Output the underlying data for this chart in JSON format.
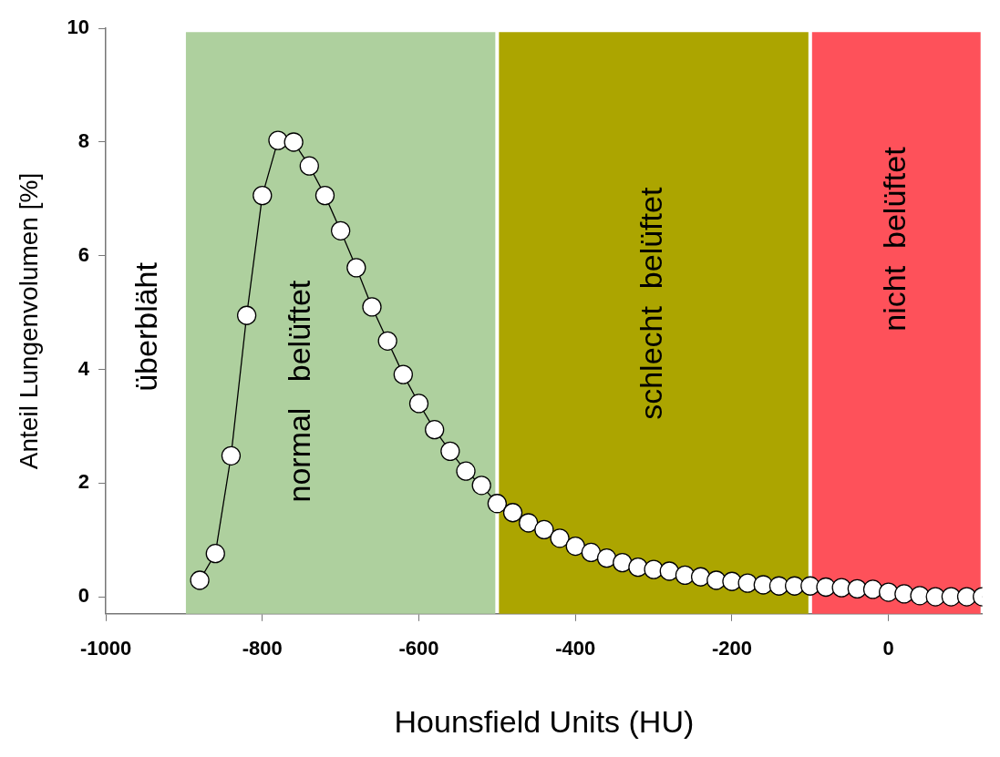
{
  "chart_data": {
    "type": "line",
    "xlabel": "Hounsfield Units (HU)",
    "ylabel": "Anteil Lungenvolumen [%]",
    "x": [
      -880,
      -860,
      -840,
      -820,
      -800,
      -780,
      -760,
      -740,
      -720,
      -700,
      -680,
      -660,
      -640,
      -620,
      -600,
      -580,
      -560,
      -540,
      -520,
      -500,
      -480,
      -460,
      -440,
      -420,
      -400,
      -380,
      -360,
      -340,
      -320,
      -300,
      -280,
      -260,
      -240,
      -220,
      -200,
      -180,
      -160,
      -140,
      -120,
      -100,
      -80,
      -60,
      -40,
      -20,
      0,
      20,
      40,
      60,
      80,
      100,
      120
    ],
    "series": [
      {
        "color": "#000000",
        "values": [
          0.29,
          0.76,
          2.48,
          4.95,
          7.06,
          8.03,
          8.0,
          7.58,
          7.06,
          6.44,
          5.79,
          5.1,
          4.5,
          3.91,
          3.4,
          2.94,
          2.56,
          2.21,
          1.96,
          1.64,
          1.48,
          1.3,
          1.18,
          1.03,
          0.89,
          0.78,
          0.68,
          0.6,
          0.52,
          0.48,
          0.45,
          0.38,
          0.35,
          0.29,
          0.27,
          0.24,
          0.21,
          0.19,
          0.19,
          0.19,
          0.17,
          0.16,
          0.14,
          0.13,
          0.08,
          0.05,
          0.02,
          0,
          0,
          0,
          0
        ]
      }
    ],
    "xlim": [
      -1000,
      120
    ],
    "xticks": [
      -1000,
      -800,
      -600,
      -400,
      -200,
      0
    ],
    "ylim": [
      -0.3,
      10
    ],
    "yticks": [
      0,
      2,
      4,
      6,
      8,
      10
    ],
    "marker": "circle",
    "line_style": "solid",
    "legend": false,
    "bands": [
      {
        "axis": "x",
        "from": -900,
        "to": -500,
        "label": "normal   belüftet",
        "color": "#aed09e"
      },
      {
        "axis": "x",
        "from": -500,
        "to": -100,
        "label": "schlecht  belüftet",
        "color": "#aca500"
      },
      {
        "axis": "x",
        "from": -100,
        "to": 120,
        "label": "nicht  belüftet",
        "color": "#fe515a"
      }
    ],
    "annotations": [
      "überbläht"
    ]
  }
}
